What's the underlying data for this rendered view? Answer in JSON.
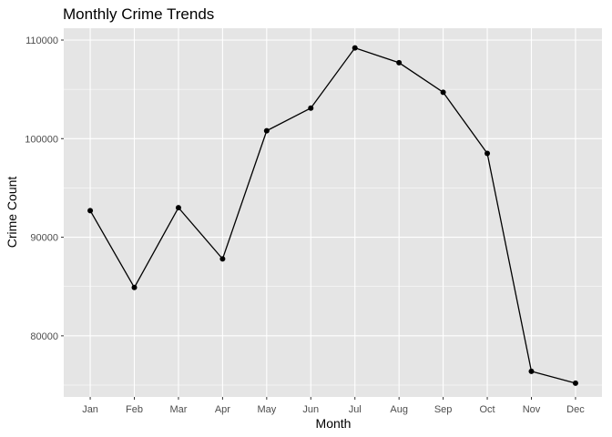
{
  "chart_data": {
    "type": "line",
    "title": "Monthly Crime Trends",
    "xlabel": "Month",
    "ylabel": "Crime Count",
    "categories": [
      "Jan",
      "Feb",
      "Mar",
      "Apr",
      "May",
      "Jun",
      "Jul",
      "Aug",
      "Sep",
      "Oct",
      "Nov",
      "Dec"
    ],
    "values": [
      92700,
      84900,
      93000,
      87800,
      100800,
      103100,
      109200,
      107700,
      104700,
      98500,
      76400,
      75200
    ],
    "ylim": [
      73800,
      111200
    ],
    "yticks": [
      80000,
      90000,
      100000,
      110000
    ],
    "ytick_labels": [
      "80000",
      "90000",
      "100000",
      "110000"
    ],
    "grid": true,
    "colors": {
      "panel_background": "#e5e5e5",
      "grid_major": "#ffffff",
      "line": "#000000",
      "point": "#000000"
    }
  }
}
